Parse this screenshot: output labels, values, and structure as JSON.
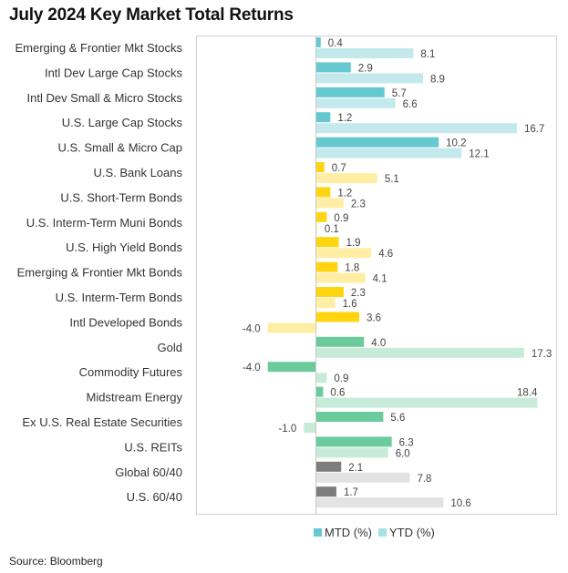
{
  "title": "July 2024 Key Market Total Returns",
  "source": "Source: Bloomberg",
  "chart_data": {
    "type": "bar",
    "orientation": "horizontal",
    "title": "July 2024 Key Market Total Returns",
    "xlabel": "",
    "ylabel": "",
    "xlim": [
      -10,
      20
    ],
    "grid": false,
    "legend_position": "bottom-center",
    "categories": [
      "Emerging & Frontier Mkt Stocks",
      "Intl Dev Large Cap Stocks",
      "Intl Dev Small & Micro Stocks",
      "U.S. Large Cap Stocks",
      "U.S. Small & Micro Cap",
      "U.S. Bank Loans",
      "U.S. Short-Term Bonds",
      "U.S. Interm-Term Muni Bonds",
      "U.S. High Yield Bonds",
      "Emerging & Frontier Mkt Bonds",
      "U.S. Interm-Term Bonds",
      "Intl Developed Bonds",
      "Gold",
      "Commodity Futures",
      "Midstream Energy",
      "Ex U.S. Real Estate Securities",
      "U.S. REITs",
      "Global 60/40",
      "U.S. 60/40"
    ],
    "groups": [
      "equity",
      "equity",
      "equity",
      "equity",
      "equity",
      "bond",
      "bond",
      "bond",
      "bond",
      "bond",
      "bond",
      "bond",
      "real",
      "real",
      "real",
      "real",
      "real",
      "balanced",
      "balanced"
    ],
    "series": [
      {
        "name": "MTD (%)",
        "values": [
          0.4,
          2.9,
          5.7,
          1.2,
          10.2,
          0.7,
          1.2,
          0.9,
          1.9,
          1.8,
          2.3,
          3.6,
          4.0,
          -4.0,
          0.6,
          5.6,
          6.3,
          2.1,
          1.7
        ]
      },
      {
        "name": "YTD (%)",
        "values": [
          8.1,
          8.9,
          6.6,
          16.7,
          12.1,
          5.1,
          2.3,
          0.1,
          4.6,
          4.1,
          1.6,
          -4.0,
          17.3,
          0.9,
          18.4,
          -1.0,
          6.0,
          7.8,
          10.6
        ]
      }
    ],
    "value_labels": {
      "MTD (%)": [
        "0.4",
        "2.9",
        "5.7",
        "1.2",
        "10.2",
        "0.7",
        "1.2",
        "0.9",
        "1.9",
        "1.8",
        "2.3",
        "3.6",
        "4.0",
        "-4.0",
        "0.6",
        "5.6",
        "6.3",
        "2.1",
        "1.7"
      ],
      "YTD (%)": [
        "8.1",
        "8.9",
        "6.6",
        "16.7",
        "12.1",
        "5.1",
        "2.3",
        "0.1",
        "4.6",
        "4.1",
        "1.6",
        "-4.0",
        "17.3",
        "0.9",
        "18.4",
        "-1.0",
        "6.0",
        "7.8",
        "10.6"
      ]
    },
    "colors": {
      "equity": {
        "mtd": "#66c8d0",
        "ytd": "#c3e9ec"
      },
      "bond": {
        "mtd": "#fed50f",
        "ytd": "#ffeea3"
      },
      "real": {
        "mtd": "#6ccb9c",
        "ytd": "#c6ecd9"
      },
      "balanced": {
        "mtd": "#7d7d7d",
        "ytd": "#e3e3e3"
      }
    },
    "legend": [
      {
        "label": "MTD (%)",
        "color": "#66c8d0"
      },
      {
        "label": "YTD (%)",
        "color": "#a9e1e6"
      }
    ]
  }
}
